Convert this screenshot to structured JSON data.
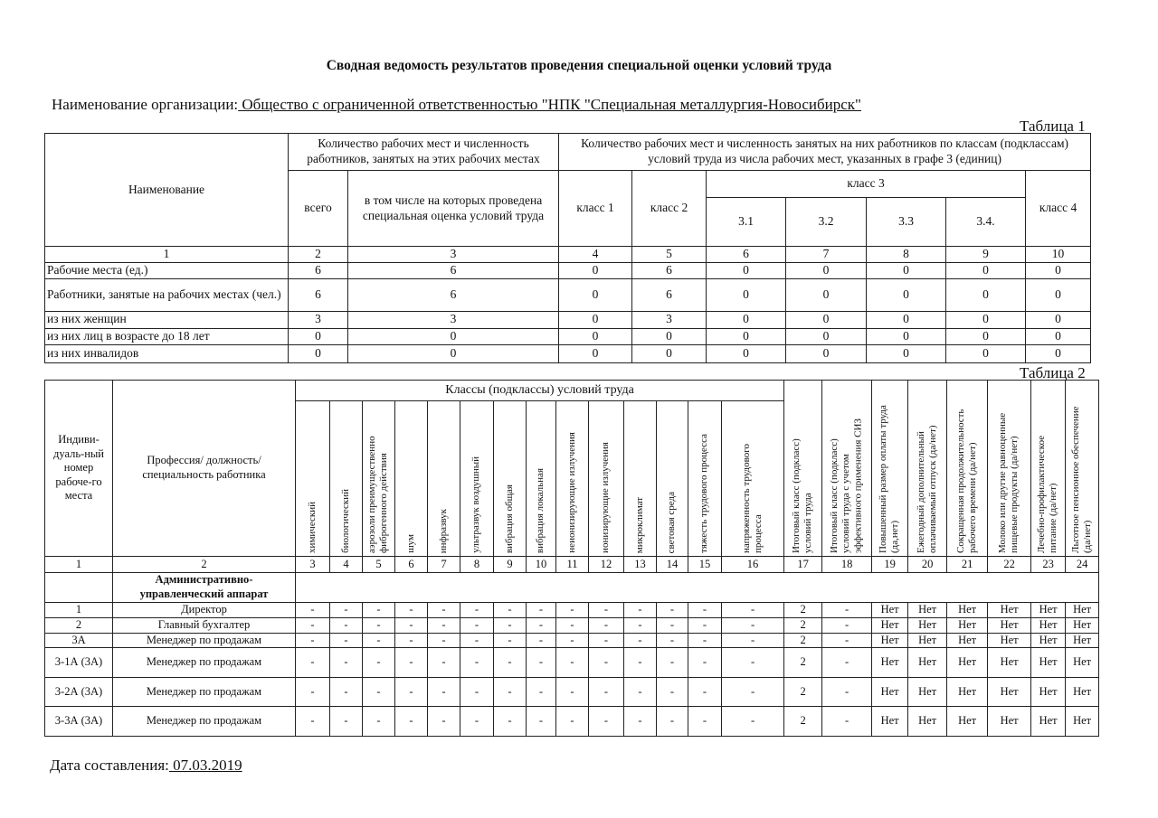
{
  "title": "Сводная ведомость результатов проведения специальной оценки условий труда",
  "org_label": "Наименование организации:",
  "org_name": " Общество с ограниченной ответственностью \"НПК \"Специальная металлургия-Новосибирск\" ",
  "table1": {
    "label": "Таблица 1",
    "h_name": "Наименование",
    "h_count": "Количество рабочих мест и численность работников, занятых на этих рабочих местах",
    "h_classes": "Количество рабочих мест и численность занятых на них работников по классам (подклассам) условий труда из числа рабочих мест, указанных в графе 3 (единиц)",
    "h_total": "всего",
    "h_assessed": "в том числе на которых проведена специальная оценка условий труда",
    "h_class1": "класс 1",
    "h_class2": "класс 2",
    "h_class3": "класс 3",
    "h_class4": "класс 4",
    "h_sub": [
      "3.1",
      "3.2",
      "3.3",
      "3.4."
    ],
    "col_numbers": [
      "1",
      "2",
      "3",
      "4",
      "5",
      "6",
      "7",
      "8",
      "9",
      "10"
    ],
    "rows": [
      [
        "Рабочие места (ед.)",
        "6",
        "6",
        "0",
        "6",
        "0",
        "0",
        "0",
        "0",
        "0"
      ],
      [
        "Работники, занятые на рабочих местах (чел.)",
        "6",
        "6",
        "0",
        "6",
        "0",
        "0",
        "0",
        "0",
        "0"
      ],
      [
        "из них женщин",
        "3",
        "3",
        "0",
        "3",
        "0",
        "0",
        "0",
        "0",
        "0"
      ],
      [
        "из них лиц в возрасте до 18 лет",
        "0",
        "0",
        "0",
        "0",
        "0",
        "0",
        "0",
        "0",
        "0"
      ],
      [
        "из них инвалидов",
        "0",
        "0",
        "0",
        "0",
        "0",
        "0",
        "0",
        "0",
        "0"
      ]
    ]
  },
  "table2": {
    "label": "Таблица 2",
    "h_id": "Индиви-дуаль-ный номер рабоче-го места",
    "h_prof": "Профессия/ должность/ специальность работника",
    "h_classes": "Классы (подклассы) условий труда",
    "factor_headers": [
      "химический",
      "биологический",
      "аэрозоли преимущественно фиброгенного действия",
      "шум",
      "инфразвук",
      "ультразвук воздушный",
      "вибрация общая",
      "вибрация локальная",
      "неионизирующие излучения",
      "ионизирующие излучения",
      "микроклимат",
      "световая среда",
      "тяжесть трудового процесса",
      "напряженность трудового процесса"
    ],
    "result_headers": [
      "Итоговый класс (подкласс) условий труда",
      "Итоговый класс (подкласс) условий труда с учетом эффективного применения СИЗ",
      "Повышенный размер оплаты труда (да,нет)",
      "Ежегодный дополнительный оплачиваемый отпуск (да/нет)",
      "Сокращенная продолжительность рабочего времени (да/нет)",
      "Молоко или другие равноценные пищевые продукты (да/нет)",
      "Лечебно-профилактическое питание (да/нет)",
      "Льготное пенсионное обеспечение (да/нет)"
    ],
    "col_numbers": [
      "1",
      "2",
      "3",
      "4",
      "5",
      "6",
      "7",
      "8",
      "9",
      "10",
      "11",
      "12",
      "13",
      "14",
      "15",
      "16",
      "17",
      "18",
      "19",
      "20",
      "21",
      "22",
      "23",
      "24"
    ],
    "section": "Административно-управленческий аппарат",
    "rows": [
      {
        "id": "1",
        "prof": "Директор",
        "cls": "2",
        "siz": "-",
        "yn": "Нет"
      },
      {
        "id": "2",
        "prof": "Главный бухгалтер",
        "cls": "2",
        "siz": "-",
        "yn": "Нет"
      },
      {
        "id": "3А",
        "prof": "Менеджер по продажам",
        "cls": "2",
        "siz": "-",
        "yn": "Нет"
      },
      {
        "id": "3-1А (3А)",
        "prof": "Менеджер по продажам",
        "cls": "2",
        "siz": "-",
        "yn": "Нет"
      },
      {
        "id": "3-2А (3А)",
        "prof": "Менеджер по продажам",
        "cls": "2",
        "siz": "-",
        "yn": "Нет"
      },
      {
        "id": "3-3А (3А)",
        "prof": "Менеджер по продажам",
        "cls": "2",
        "siz": "-",
        "yn": "Нет"
      }
    ],
    "dash": "-"
  },
  "date_label": "Дата составления:",
  "date_value": " 07.03.2019 "
}
